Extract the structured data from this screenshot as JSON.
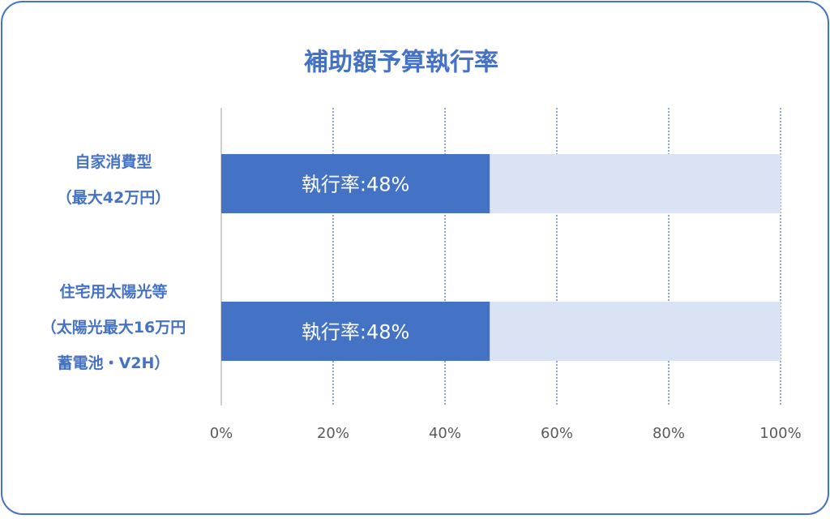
{
  "chart_data": {
    "type": "bar",
    "orientation": "horizontal",
    "title": "補助額予算執行率",
    "categories": [
      [
        "自家消費型",
        "（最大42万円）"
      ],
      [
        "住宅用太陽光等",
        "（太陽光最大16万円",
        "蓄電池・V2H）"
      ]
    ],
    "series": [
      {
        "color": "#dae3f3",
        "values": [
          100,
          100
        ]
      },
      {
        "color": "#4472c4",
        "values": [
          48,
          48
        ],
        "value_labels": [
          "執行率:48%",
          "執行率:48%"
        ]
      }
    ],
    "xlim": [
      0,
      100
    ],
    "xticks": [
      {
        "value": 0,
        "label": "0%"
      },
      {
        "value": 20,
        "label": "20%"
      },
      {
        "value": 40,
        "label": "40%"
      },
      {
        "value": 60,
        "label": "60%"
      },
      {
        "value": 80,
        "label": "80%"
      },
      {
        "value": 100,
        "label": "100%"
      }
    ],
    "grid": true
  }
}
